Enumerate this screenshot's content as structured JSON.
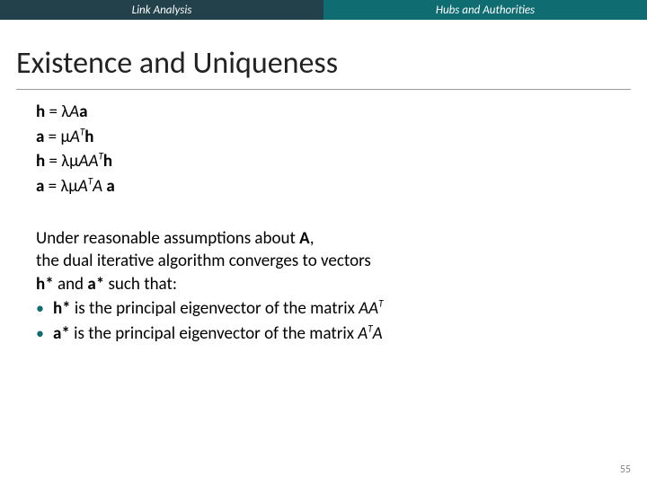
{
  "header": {
    "left": "Link Analysis",
    "right": "Hubs and Authorities"
  },
  "title": "Existence and Uniqueness",
  "equations": {
    "e1_lhs": "h",
    "e1_eq": " = ",
    "e1_l": "λ",
    "e1_A": "A",
    "e1_a": "a",
    "e2_lhs": "a",
    "e2_eq": " = ",
    "e2_m": "μ",
    "e2_A": "A",
    "e2_T": "T",
    "e2_h": "h",
    "e3_lhs": "h",
    "e3_eq": " = ",
    "e3_l": "λ",
    "e3_m": "μ",
    "e3_A1": "A",
    "e3_A2": "A",
    "e3_T": "T",
    "e3_h": "h",
    "e4_lhs": "a",
    "e4_eq": " = ",
    "e4_l": "λ",
    "e4_m": "μ",
    "e4_A1": "A",
    "e4_T": "T",
    "e4_A2": "A",
    "e4_sp": " ",
    "e4_a": "a"
  },
  "desc": {
    "l1a": "Under reasonable assumptions about ",
    "l1b": "A",
    "l1c": ",",
    "l2": "the dual iterative algorithm converges to vectors",
    "l3a": "h*",
    "l3b": " and ",
    "l3c": "a*",
    "l3d": " such that:"
  },
  "bullets": {
    "b1a": "h*",
    "b1b": " is the principal eigenvector of the matrix ",
    "b1c": "AA",
    "b1T": "T",
    "b2a": "a*",
    "b2b": " is the principal eigenvector of the matrix ",
    "b2c": "A",
    "b2T": "T",
    "b2d": "A"
  },
  "pagenum": "55",
  "colors": {
    "header_left_bg": "#22414a",
    "header_right_bg": "#0f6d72",
    "bullet_color": "#0f6d72"
  }
}
